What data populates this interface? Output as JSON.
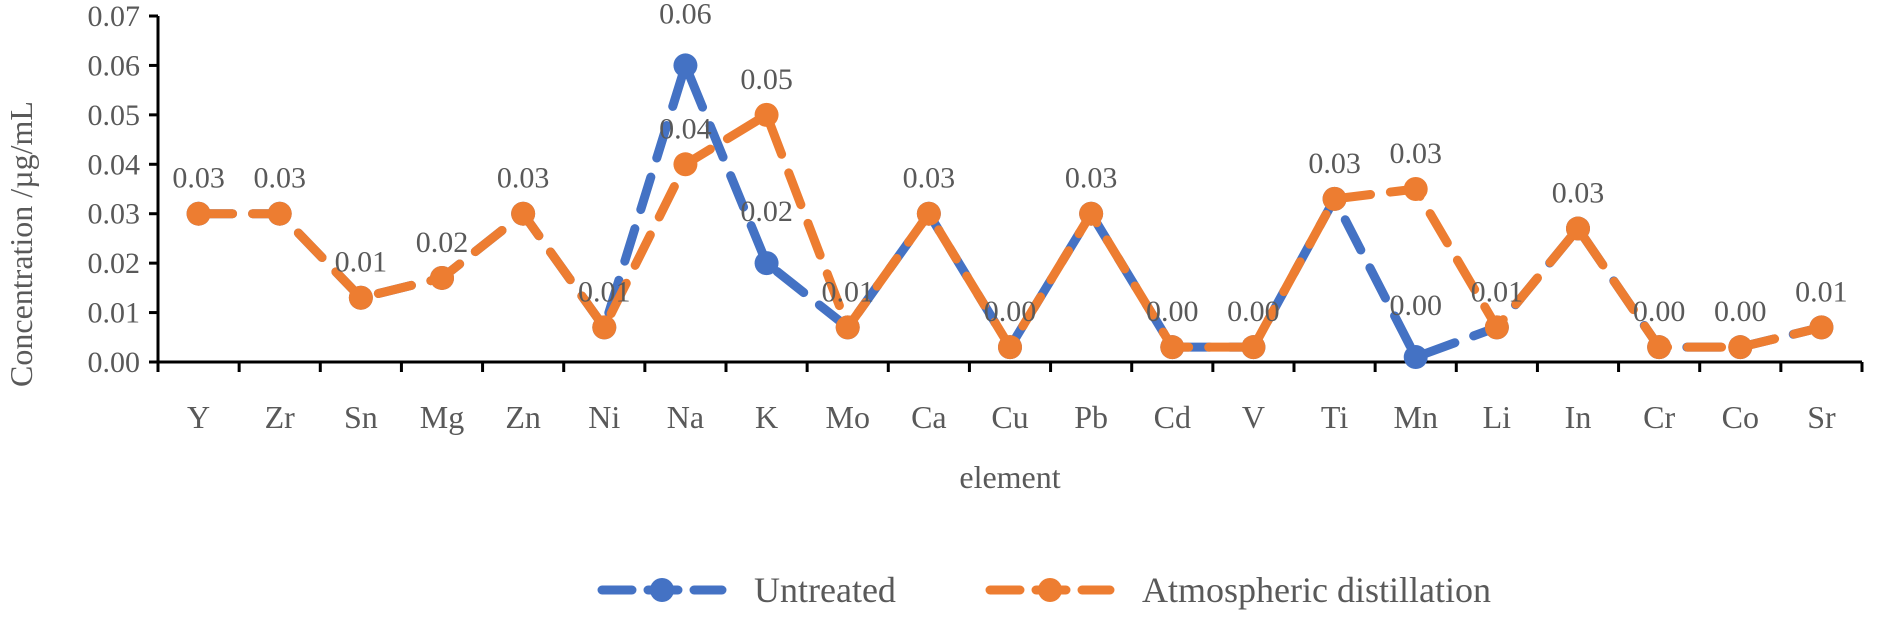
{
  "chart_data": {
    "type": "line",
    "xlabel": "element",
    "ylabel": "Concentration /µg/mL",
    "ylim": [
      0,
      0.07
    ],
    "yticks": [
      "0.00",
      "0.01",
      "0.02",
      "0.03",
      "0.04",
      "0.05",
      "0.06",
      "0.07"
    ],
    "categories": [
      "Y",
      "Zr",
      "Sn",
      "Mg",
      "Zn",
      "Ni",
      "Na",
      "K",
      "Mo",
      "Ca",
      "Cu",
      "Pb",
      "Cd",
      "V",
      "Ti",
      "Mn",
      "Li",
      "In",
      "Cr",
      "Co",
      "Sr"
    ],
    "series": [
      {
        "name": "Untreated",
        "color": "#4472C4",
        "values": [
          0.03,
          0.03,
          0.013,
          0.017,
          0.03,
          0.007,
          0.06,
          0.02,
          0.007,
          0.03,
          0.003,
          0.03,
          0.003,
          0.003,
          0.033,
          0.001,
          0.007,
          0.027,
          0.003,
          0.003,
          0.007
        ],
        "labels": [
          "",
          "",
          "",
          "",
          "",
          "",
          "0.06",
          "0.02",
          "",
          "",
          "",
          "",
          "",
          "",
          "",
          "0.00",
          "",
          "",
          "",
          "",
          ""
        ]
      },
      {
        "name": "Atmospheric distillation",
        "color": "#ED7D31",
        "values": [
          0.03,
          0.03,
          0.013,
          0.017,
          0.03,
          0.007,
          0.04,
          0.05,
          0.007,
          0.03,
          0.003,
          0.03,
          0.003,
          0.003,
          0.033,
          0.035,
          0.007,
          0.027,
          0.003,
          0.003,
          0.007
        ],
        "labels": [
          "0.03",
          "0.03",
          "0.01",
          "0.02",
          "0.03",
          "0.01",
          "0.04",
          "0.05",
          "0.01",
          "0.03",
          "0.00",
          "0.03",
          "0.00",
          "0.00",
          "0.03",
          "0.03",
          "0.01",
          "0.03",
          "0.00",
          "0.00",
          "0.01"
        ]
      }
    ],
    "legend_position": "bottom",
    "grid": false
  }
}
